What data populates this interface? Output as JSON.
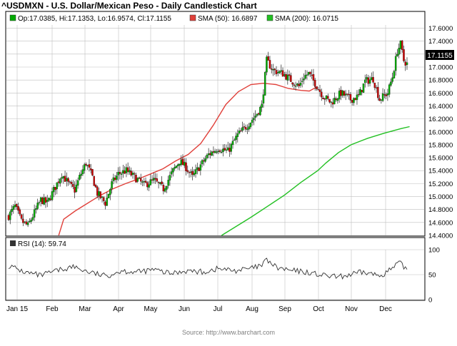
{
  "title": "^USDMXN - U.S. Dollar/Mexican Peso - Daily Candlestick Chart",
  "source": "Source: http://www.barchart.com",
  "legend": {
    "ohlc": "Op:17.0385, Hi:17.1353, Lo:16.9574, Cl:17.1155",
    "sma50": "SMA (50): 16.6897",
    "sma200": "SMA (200): 16.0715"
  },
  "rsi_legend": "RSI (14): 59.74",
  "last_price_label": "17.1155",
  "colors": {
    "up": "#00aa00",
    "down": "#cc0000",
    "sma50": "#e0403a",
    "sma200": "#22c022",
    "rsi": "#333333",
    "grid": "#bfbfbf",
    "frame": "#000000"
  },
  "chart_data": [
    {
      "type": "candlestick",
      "title": "^USDMXN - U.S. Dollar/Mexican Peso - Daily Candlestick Chart",
      "x_ticks": [
        "Jan 15",
        "Feb",
        "Mar",
        "Apr",
        "May",
        "Jun",
        "Jul",
        "Aug",
        "Sep",
        "Oct",
        "Nov",
        "Dec"
      ],
      "y_ticks": [
        "14.4000",
        "14.6000",
        "14.8000",
        "15.0000",
        "15.2000",
        "15.4000",
        "15.6000",
        "15.8000",
        "16.0000",
        "16.2000",
        "16.4000",
        "16.6000",
        "16.8000",
        "17.0000",
        "17.2000",
        "17.4000",
        "17.6000"
      ],
      "ylim": [
        14.4,
        17.65
      ],
      "grid": true,
      "price_anchors": [
        [
          0,
          14.7
        ],
        [
          4,
          14.85
        ],
        [
          8,
          14.62
        ],
        [
          12,
          14.55
        ],
        [
          15,
          14.7
        ],
        [
          20,
          14.95
        ],
        [
          24,
          14.9
        ],
        [
          28,
          15.1
        ],
        [
          33,
          15.35
        ],
        [
          37,
          15.2
        ],
        [
          41,
          15.1
        ],
        [
          44,
          15.3
        ],
        [
          48,
          15.52
        ],
        [
          52,
          15.3
        ],
        [
          55,
          15.05
        ],
        [
          60,
          14.9
        ],
        [
          64,
          15.2
        ],
        [
          68,
          15.35
        ],
        [
          73,
          15.4
        ],
        [
          78,
          15.3
        ],
        [
          84,
          15.18
        ],
        [
          90,
          15.25
        ],
        [
          96,
          15.12
        ],
        [
          102,
          15.4
        ],
        [
          106,
          15.55
        ],
        [
          110,
          15.45
        ],
        [
          114,
          15.3
        ],
        [
          118,
          15.45
        ],
        [
          124,
          15.65
        ],
        [
          130,
          15.75
        ],
        [
          136,
          15.7
        ],
        [
          142,
          15.95
        ],
        [
          148,
          16.1
        ],
        [
          153,
          16.25
        ],
        [
          157,
          16.4
        ],
        [
          160,
          17.1
        ],
        [
          164,
          16.95
        ],
        [
          170,
          16.9
        ],
        [
          175,
          16.8
        ],
        [
          180,
          16.7
        ],
        [
          183,
          16.85
        ],
        [
          186,
          16.9
        ],
        [
          190,
          16.75
        ],
        [
          195,
          16.55
        ],
        [
          200,
          16.45
        ],
        [
          206,
          16.6
        ],
        [
          212,
          16.5
        ],
        [
          217,
          16.55
        ],
        [
          221,
          16.78
        ],
        [
          226,
          16.82
        ],
        [
          230,
          16.5
        ],
        [
          235,
          16.6
        ],
        [
          238,
          16.85
        ],
        [
          241,
          17.25
        ],
        [
          243,
          17.35
        ],
        [
          245,
          17.1
        ],
        [
          247,
          17.05
        ]
      ],
      "sma50": {
        "label": "SMA (50): 16.6897",
        "points": [
          [
            60,
            14.4
          ],
          [
            66,
            14.65
          ],
          [
            80,
            14.78
          ],
          [
            95,
            14.9
          ],
          [
            110,
            15.02
          ],
          [
            125,
            15.12
          ],
          [
            140,
            15.2
          ],
          [
            155,
            15.27
          ],
          [
            170,
            15.35
          ],
          [
            185,
            15.43
          ],
          [
            200,
            15.55
          ],
          [
            215,
            15.65
          ],
          [
            230,
            15.82
          ],
          [
            245,
            16.1
          ],
          [
            260,
            16.42
          ],
          [
            275,
            16.62
          ],
          [
            290,
            16.73
          ],
          [
            305,
            16.75
          ],
          [
            320,
            16.73
          ],
          [
            335,
            16.67
          ],
          [
            350,
            16.64
          ],
          [
            360,
            16.63
          ],
          [
            370,
            16.7
          ]
        ]
      },
      "sma200": {
        "label": "SMA (200): 16.0715",
        "points": [
          [
            255,
            14.4
          ],
          [
            270,
            14.52
          ],
          [
            290,
            14.68
          ],
          [
            310,
            14.85
          ],
          [
            330,
            15.02
          ],
          [
            350,
            15.22
          ],
          [
            370,
            15.4
          ],
          [
            380,
            15.52
          ],
          [
            395,
            15.68
          ],
          [
            410,
            15.8
          ],
          [
            430,
            15.9
          ],
          [
            450,
            15.98
          ],
          [
            470,
            16.05
          ],
          [
            480,
            16.08
          ]
        ]
      }
    },
    {
      "type": "line",
      "title": "RSI (14): 59.74",
      "y_ticks": [
        "0",
        "50",
        "100"
      ],
      "ylim": [
        0,
        100
      ],
      "anchors": [
        [
          0,
          68
        ],
        [
          10,
          55
        ],
        [
          20,
          48
        ],
        [
          30,
          58
        ],
        [
          40,
          66
        ],
        [
          50,
          55
        ],
        [
          60,
          47
        ],
        [
          70,
          58
        ],
        [
          80,
          55
        ],
        [
          90,
          60
        ],
        [
          100,
          52
        ],
        [
          110,
          58
        ],
        [
          120,
          55
        ],
        [
          130,
          62
        ],
        [
          140,
          58
        ],
        [
          150,
          62
        ],
        [
          157,
          68
        ],
        [
          160,
          80
        ],
        [
          166,
          64
        ],
        [
          175,
          58
        ],
        [
          185,
          55
        ],
        [
          195,
          48
        ],
        [
          205,
          45
        ],
        [
          212,
          50
        ],
        [
          220,
          55
        ],
        [
          230,
          48
        ],
        [
          238,
          62
        ],
        [
          242,
          74
        ],
        [
          245,
          66
        ],
        [
          247,
          60
        ]
      ]
    }
  ]
}
